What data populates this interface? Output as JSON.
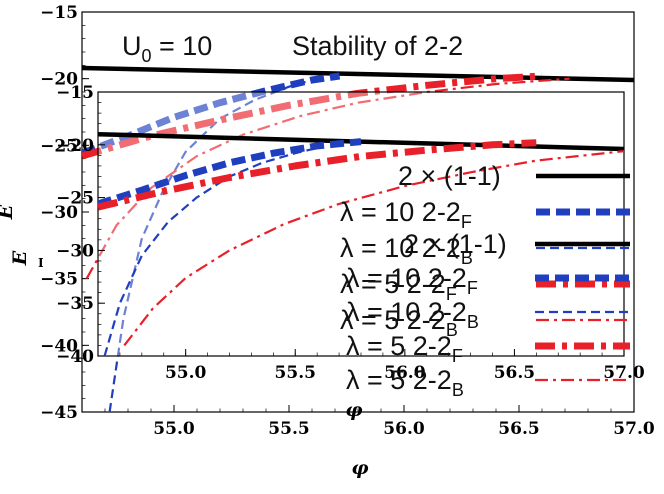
{
  "chart_data": [
    {
      "id": "outer",
      "type": "line",
      "title": "Stability of 2-2",
      "annotation": "U0 = 10",
      "annotation_parts": {
        "base": "U",
        "sub": "0",
        "rest": " = 10"
      },
      "xlabel": "φ",
      "ylabel": "E",
      "xlim": [
        54.6,
        57.0
      ],
      "ylim": [
        -45,
        -15
      ],
      "xticks": [
        55.0,
        55.5,
        56.0,
        56.5,
        57.0
      ],
      "xtick_labels": [
        "55.0",
        "55.5",
        "56.0",
        "56.5",
        "57.0"
      ],
      "yticks": [
        -45,
        -40,
        -35,
        -30,
        -25,
        -20,
        -15
      ],
      "ytick_labels": [
        "−45",
        "−40",
        "−35",
        "−30",
        "−25",
        "−20",
        "−15"
      ],
      "series": [
        {
          "name": "2 × (1-1)",
          "style": "solid",
          "color": "#000000",
          "x": [
            54.6,
            57.0
          ],
          "y": [
            -19.2,
            -20.1
          ]
        },
        {
          "name": "λ = 10 2-2F",
          "style": "thickdash",
          "color": "#1f3fbf",
          "x": [
            54.6,
            54.8,
            55.0,
            55.2,
            55.4,
            55.6,
            55.72
          ],
          "y": [
            -25.6,
            -24.3,
            -22.9,
            -21.8,
            -20.9,
            -20.1,
            -19.8
          ]
        },
        {
          "name": "λ = 10 2-2B",
          "style": "thindash",
          "color": "#1f3fbf",
          "x": [
            54.72,
            54.78,
            54.86,
            54.95,
            55.05,
            55.2,
            55.35,
            55.5,
            55.6
          ],
          "y": [
            -45.0,
            -38.0,
            -32.0,
            -28.5,
            -25.5,
            -23.0,
            -21.6,
            -20.6,
            -20.1
          ]
        },
        {
          "name": "λ = 5 2-2F",
          "style": "thickdashdot",
          "color": "#e8202a",
          "x": [
            54.6,
            54.9,
            55.2,
            55.5,
            55.8,
            56.1,
            56.4,
            56.6
          ],
          "y": [
            -25.8,
            -24.3,
            -23.1,
            -22.0,
            -21.1,
            -20.5,
            -20.0,
            -19.8
          ]
        },
        {
          "name": "λ = 5 2-2B",
          "style": "thindashdot",
          "color": "#e8202a",
          "x": [
            54.62,
            54.75,
            54.9,
            55.1,
            55.3,
            55.55,
            55.8,
            56.1,
            56.4,
            56.72
          ],
          "y": [
            -35.0,
            -31.0,
            -28.2,
            -25.8,
            -24.2,
            -22.8,
            -21.8,
            -21.0,
            -20.4,
            -20.0
          ]
        }
      ]
    },
    {
      "id": "inset",
      "type": "line",
      "xlabel": "φ",
      "ylabel": "E",
      "xlim": [
        54.6,
        57.0
      ],
      "ylim": [
        -40,
        -15
      ],
      "xticks": [
        55.0,
        55.5,
        56.0,
        56.5,
        57.0
      ],
      "xtick_labels": [
        "55.0",
        "55.5",
        "56.0",
        "56.5",
        "57.0"
      ],
      "yticks": [
        -40,
        -35,
        -30,
        -25,
        -20,
        -15
      ],
      "ytick_labels": [
        "−40",
        "−35",
        "−30",
        "−25",
        "−20",
        "−15"
      ],
      "series": [
        {
          "name": "2 × (1-1)",
          "style": "solid",
          "color": "#000000",
          "x": [
            54.6,
            57.0
          ],
          "y": [
            -19.0,
            -20.4
          ]
        },
        {
          "name": "λ = 10 2-2F",
          "style": "thickdash",
          "color": "#1f3fbf",
          "x": [
            54.6,
            54.8,
            55.0,
            55.2,
            55.4,
            55.6,
            55.8
          ],
          "y": [
            -25.6,
            -24.3,
            -22.9,
            -21.7,
            -20.8,
            -20.1,
            -19.7
          ]
        },
        {
          "name": "λ = 10 2-2B",
          "style": "thindash",
          "color": "#1f3fbf",
          "x": [
            54.63,
            54.7,
            54.8,
            54.92,
            55.05,
            55.2,
            55.35,
            55.5,
            55.6
          ],
          "y": [
            -40.0,
            -35.0,
            -30.5,
            -27.3,
            -25.0,
            -23.0,
            -21.7,
            -20.8,
            -20.3
          ]
        },
        {
          "name": "λ = 5 2-2F",
          "style": "thickdashdot",
          "color": "#e8202a",
          "x": [
            54.6,
            54.9,
            55.2,
            55.5,
            55.8,
            56.1,
            56.4,
            56.6
          ],
          "y": [
            -25.9,
            -24.4,
            -23.1,
            -22.0,
            -21.1,
            -20.5,
            -20.0,
            -19.8
          ]
        },
        {
          "name": "λ = 5 2-2B",
          "style": "thindashdot",
          "color": "#e8202a",
          "x": [
            54.72,
            54.85,
            55.0,
            55.2,
            55.45,
            55.7,
            56.0,
            56.3,
            56.6,
            57.0
          ],
          "y": [
            -39.0,
            -35.5,
            -32.6,
            -30.0,
            -27.5,
            -25.6,
            -23.9,
            -22.6,
            -21.5,
            -20.6
          ]
        }
      ]
    }
  ],
  "legends": [
    {
      "id": "outer-legend",
      "entries": [
        {
          "label": "2 × (1-1)",
          "base": "2 × (1-1)",
          "sub": "",
          "style": "solid",
          "color": "#000000"
        },
        {
          "label": "λ = 10 2-2F",
          "base": "λ = 10  2-2",
          "sub": "F",
          "style": "thickdash",
          "color": "#1f3fbf"
        },
        {
          "label": "λ = 10 2-2B",
          "base": "λ = 10  2-2",
          "sub": "B",
          "style": "thindash",
          "color": "#1f3fbf"
        },
        {
          "label": "λ = 5 2-2F",
          "base": "λ = 5  2-2",
          "sub": "F",
          "style": "thickdashdot",
          "color": "#e8202a"
        },
        {
          "label": "λ = 5 2-2B",
          "base": "λ = 5  2-2",
          "sub": "B",
          "style": "thindashdot",
          "color": "#e8202a"
        }
      ]
    },
    {
      "id": "inset-legend",
      "entries": [
        {
          "label": "2 × (1-1)",
          "base": "2 × (1-1)",
          "sub": "",
          "style": "solid",
          "color": "#000000"
        },
        {
          "label": "λ = 10 2-2F",
          "base": "λ = 10  2-2",
          "sub": "F",
          "style": "thickdash",
          "color": "#1f3fbf"
        },
        {
          "label": "λ = 10 2-2B",
          "base": "λ = 10  2-2",
          "sub": "B",
          "style": "thindash",
          "color": "#1f3fbf"
        },
        {
          "label": "λ = 5 2-2F",
          "base": "λ = 5  2-2",
          "sub": "F",
          "style": "thickdashdot",
          "color": "#e8202a"
        },
        {
          "label": "λ = 5 2-2B",
          "base": "λ = 5  2-2",
          "sub": "B",
          "style": "thindashdot",
          "color": "#e8202a"
        }
      ]
    }
  ]
}
